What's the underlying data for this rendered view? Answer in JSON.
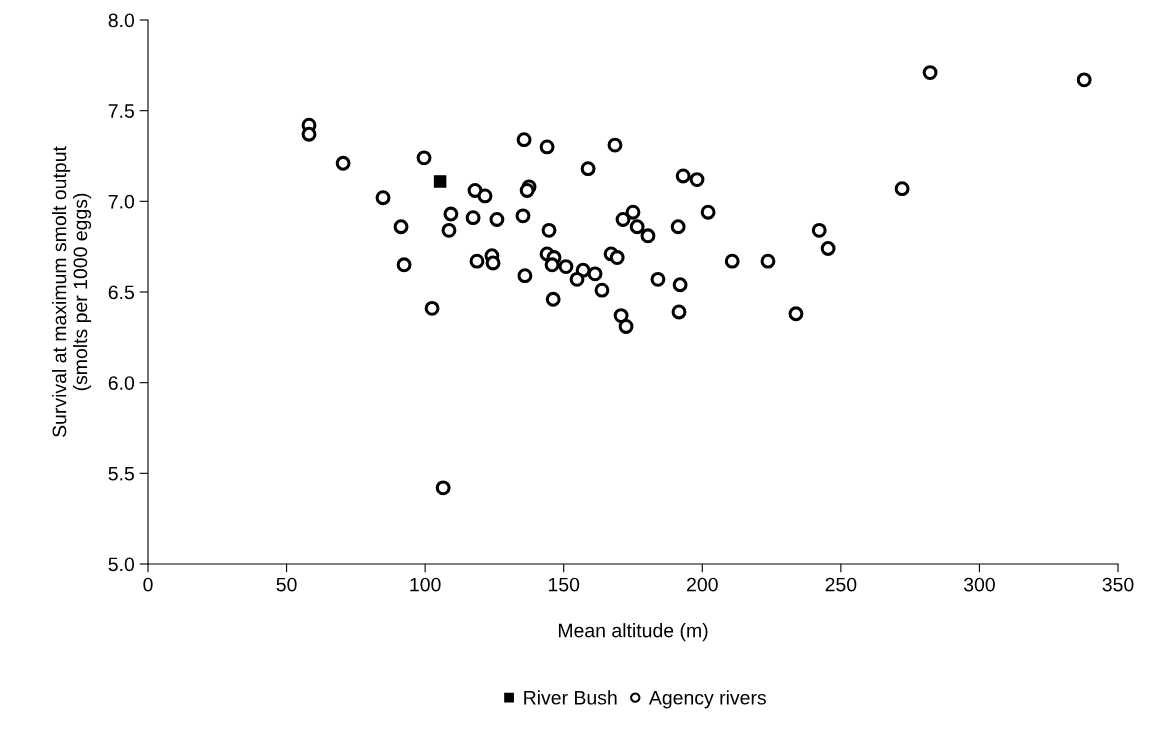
{
  "chart_data": {
    "type": "scatter",
    "xlabel": "Mean altitude (m)",
    "ylabel": "Survival at maximum smolt output\n(smolts per 1000 eggs)",
    "xlim": [
      0,
      350
    ],
    "xticks": [
      0,
      50,
      100,
      150,
      200,
      250,
      300,
      350
    ],
    "ylim": [
      5.0,
      8.0
    ],
    "yticks": [
      {
        "value": 5.0,
        "label": "5.0"
      },
      {
        "value": 5.5,
        "label": "5.5"
      },
      {
        "value": 6.0,
        "label": "6.0"
      },
      {
        "value": 6.5,
        "label": "6.5"
      },
      {
        "value": 7.0,
        "label": "7.0"
      },
      {
        "value": 7.5,
        "label": "7.5"
      },
      {
        "value": 8.0,
        "label": "8.0"
      }
    ],
    "grid": false,
    "legend": "bottom",
    "series": [
      {
        "name": "River Bush",
        "color": "#000000",
        "marker": "square",
        "x": [
          105.4
        ],
        "values": [
          7.11
        ]
      },
      {
        "name": "Agency rivers",
        "color": "#000000",
        "marker": "circle",
        "x": [
          58.1,
          58.1,
          70.4,
          84.8,
          91.3,
          92.4,
          99.6,
          118,
          121.6,
          109.3,
          108.6,
          117.3,
          125.9,
          124.1,
          124.5,
          118.7,
          102.5,
          106.5,
          135.7,
          144,
          137.5,
          136.8,
          135.3,
          144.7,
          144,
          146.5,
          145.8,
          150.8,
          136,
          146.2,
          168.5,
          158.8,
          193.1,
          198.1,
          202.1,
          175,
          171.4,
          176.5,
          180.4,
          191.3,
          167.1,
          169.3,
          157,
          161.3,
          154.8,
          163.8,
          184,
          192,
          210.8,
          223.7,
          242.2,
          245.4,
          170.7,
          172.5,
          191.6,
          233.8,
          282.2,
          337.8,
          272.1
        ],
        "values": [
          7.42,
          7.37,
          7.21,
          7.02,
          6.86,
          6.65,
          7.24,
          7.06,
          7.03,
          6.93,
          6.84,
          6.91,
          6.9,
          6.7,
          6.66,
          6.67,
          6.41,
          5.42,
          7.34,
          7.3,
          7.08,
          7.06,
          6.92,
          6.84,
          6.71,
          6.69,
          6.65,
          6.64,
          6.59,
          6.46,
          7.31,
          7.18,
          7.14,
          7.12,
          6.94,
          6.94,
          6.9,
          6.86,
          6.81,
          6.86,
          6.71,
          6.69,
          6.62,
          6.6,
          6.57,
          6.51,
          6.57,
          6.54,
          6.67,
          6.67,
          6.84,
          6.74,
          6.37,
          6.31,
          6.39,
          6.38,
          7.71,
          7.67,
          7.07
        ]
      }
    ]
  }
}
